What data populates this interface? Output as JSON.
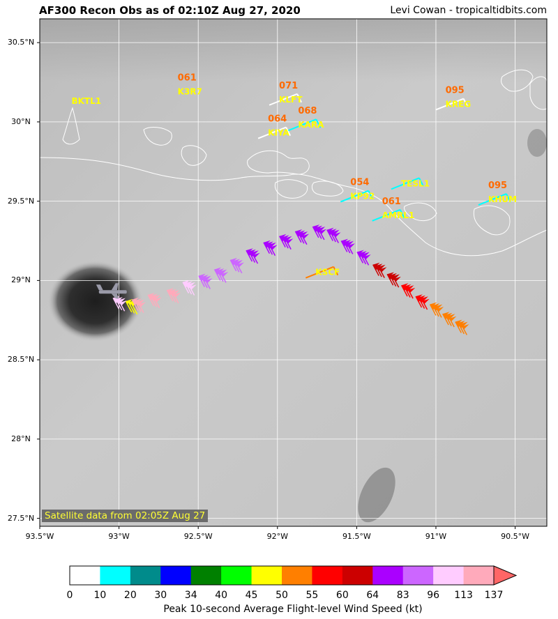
{
  "title": "AF300 Recon Obs as of 02:10Z Aug 27, 2020",
  "credit": "Levi Cowan - tropicaltidbits.com",
  "satellite_note": "Satellite data from 02:05Z Aug 27",
  "map": {
    "lon_range": [
      -93.5,
      -90.3
    ],
    "lat_range": [
      27.45,
      30.65
    ],
    "lon_ticks": [
      {
        "value": -93.5,
        "label": "93.5°W"
      },
      {
        "value": -93.0,
        "label": "93°W"
      },
      {
        "value": -92.5,
        "label": "92.5°W"
      },
      {
        "value": -92.0,
        "label": "92°W"
      },
      {
        "value": -91.5,
        "label": "91.5°W"
      },
      {
        "value": -91.0,
        "label": "91°W"
      },
      {
        "value": -90.5,
        "label": "90.5°W"
      }
    ],
    "lat_ticks": [
      {
        "value": 30.5,
        "label": "30.5°N"
      },
      {
        "value": 30.0,
        "label": "30°N"
      },
      {
        "value": 29.5,
        "label": "29.5°N"
      },
      {
        "value": 29.0,
        "label": "29°N"
      },
      {
        "value": 28.5,
        "label": "28.5°N"
      },
      {
        "value": 28.0,
        "label": "28°N"
      },
      {
        "value": 27.5,
        "label": "27.5°N"
      }
    ],
    "grid": true,
    "storm_center": {
      "lon": -93.15,
      "lat": 28.87
    }
  },
  "stations": [
    {
      "id": "BKTL1",
      "value": "",
      "lon": -93.3,
      "lat": 30.14,
      "wind_color": ""
    },
    {
      "id": "K3R7",
      "value": "061",
      "lon": -92.63,
      "lat": 30.2,
      "wind_color": ""
    },
    {
      "id": "KLFT",
      "value": "071",
      "lon": -91.99,
      "lat": 30.15,
      "wind_color": "#ffffff"
    },
    {
      "id": "KIYA",
      "value": "064",
      "lon": -92.06,
      "lat": 29.94,
      "wind_color": "#ffffff"
    },
    {
      "id": "KARA",
      "value": "068",
      "lon": -91.87,
      "lat": 29.99,
      "wind_color": "#00ffff"
    },
    {
      "id": "KREG",
      "value": "095",
      "lon": -90.94,
      "lat": 30.12,
      "wind_color": "#ffffff"
    },
    {
      "id": "KP92",
      "value": "054",
      "lon": -91.54,
      "lat": 29.54,
      "wind_color": "#00ffff"
    },
    {
      "id": "TESL1",
      "value": "",
      "lon": -91.22,
      "lat": 29.62,
      "wind_color": "#00ffff"
    },
    {
      "id": "AMRL1",
      "value": "061",
      "lon": -91.34,
      "lat": 29.42,
      "wind_color": "#00ffff"
    },
    {
      "id": "KHUM",
      "value": "095",
      "lon": -90.67,
      "lat": 29.52,
      "wind_color": "#00ffff"
    },
    {
      "id": "KSCF",
      "value": "",
      "lon": -91.76,
      "lat": 29.06,
      "wind_color": "#ff7f00"
    }
  ],
  "flight_obs": [
    {
      "lon": -92.92,
      "lat": 28.8,
      "kt": 48
    },
    {
      "lon": -93.0,
      "lat": 28.82,
      "kt": 100
    },
    {
      "lon": -92.88,
      "lat": 28.81,
      "kt": 118
    },
    {
      "lon": -92.78,
      "lat": 28.84,
      "kt": 118
    },
    {
      "lon": -92.66,
      "lat": 28.87,
      "kt": 115
    },
    {
      "lon": -92.56,
      "lat": 28.92,
      "kt": 100
    },
    {
      "lon": -92.46,
      "lat": 28.96,
      "kt": 95
    },
    {
      "lon": -92.36,
      "lat": 29.0,
      "kt": 88
    },
    {
      "lon": -92.26,
      "lat": 29.06,
      "kt": 84
    },
    {
      "lon": -92.16,
      "lat": 29.12,
      "kt": 78
    },
    {
      "lon": -92.05,
      "lat": 29.17,
      "kt": 76
    },
    {
      "lon": -91.95,
      "lat": 29.21,
      "kt": 74
    },
    {
      "lon": -91.85,
      "lat": 29.24,
      "kt": 72
    },
    {
      "lon": -91.74,
      "lat": 29.27,
      "kt": 70
    },
    {
      "lon": -91.65,
      "lat": 29.25,
      "kt": 72
    },
    {
      "lon": -91.56,
      "lat": 29.18,
      "kt": 70
    },
    {
      "lon": -91.46,
      "lat": 29.11,
      "kt": 68
    },
    {
      "lon": -91.36,
      "lat": 29.03,
      "kt": 63
    },
    {
      "lon": -91.27,
      "lat": 28.97,
      "kt": 60
    },
    {
      "lon": -91.18,
      "lat": 28.9,
      "kt": 58
    },
    {
      "lon": -91.09,
      "lat": 28.83,
      "kt": 56
    },
    {
      "lon": -91.0,
      "lat": 28.78,
      "kt": 53
    },
    {
      "lon": -90.92,
      "lat": 28.72,
      "kt": 52
    },
    {
      "lon": -90.84,
      "lat": 28.67,
      "kt": 52
    }
  ],
  "colorbar": {
    "title": "Peak 10-second Average Flight-level Wind Speed (kt)",
    "labels": [
      "0",
      "10",
      "20",
      "30",
      "34",
      "40",
      "45",
      "50",
      "55",
      "60",
      "64",
      "83",
      "96",
      "113",
      "137"
    ],
    "colors": [
      "#ffffff",
      "#00ffff",
      "#008b8b",
      "#0000ff",
      "#008000",
      "#00ff00",
      "#ffff00",
      "#ff7f00",
      "#ff0000",
      "#cc0000",
      "#aa00ff",
      "#cc66ff",
      "#ffccff",
      "#ffaabb",
      "#ff6666"
    ],
    "extend": "max"
  }
}
